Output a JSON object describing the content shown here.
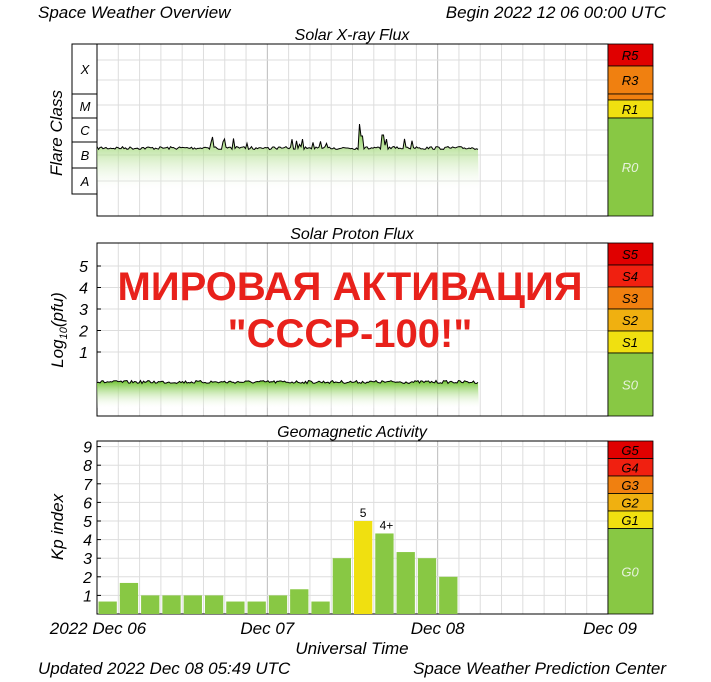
{
  "header": {
    "title": "Space Weather Overview",
    "begin": "Begin 2022 12 06 00:00 UTC"
  },
  "footer": {
    "updated": "Updated 2022 Dec 08 05:49 UTC",
    "source": "Space Weather Prediction Center"
  },
  "overlay": {
    "line1": "МИРОВАЯ АКТИВАЦИЯ",
    "line2": "\"СССР-100!\""
  },
  "chart_data": [
    {
      "type": "area",
      "title": "Solar X-ray Flux",
      "ylabel": "Flare Class",
      "yticks": [
        "X",
        "M",
        "C",
        "B",
        "A"
      ],
      "x": [
        "2022 Dec 06",
        "2022 Dec 08 05:49"
      ],
      "level_class": "B",
      "peak_class": "C",
      "scale": [
        {
          "label": "R5",
          "color": "#e00000"
        },
        {
          "label": "R3",
          "color": "#f08010"
        },
        {
          "label": "R1",
          "color": "#f0e010"
        },
        {
          "label": "R0",
          "color": "#88c844"
        }
      ],
      "line_color": "#000000",
      "fill_color": "#7ccf3c"
    },
    {
      "type": "area",
      "title": "Solar Proton Flux",
      "ylabel": "Log10(pfu)",
      "yticks": [
        "5",
        "4",
        "3",
        "2",
        "1"
      ],
      "x": [
        "2022 Dec 06",
        "2022 Dec 08 05:49"
      ],
      "scale": [
        {
          "label": "S5",
          "color": "#e00000"
        },
        {
          "label": "S4",
          "color": "#f02010"
        },
        {
          "label": "S3",
          "color": "#f08010"
        },
        {
          "label": "S2",
          "color": "#f0b010"
        },
        {
          "label": "S1",
          "color": "#f0e010"
        },
        {
          "label": "S0",
          "color": "#88c844"
        }
      ],
      "line_color": "#000000",
      "fill_color": "#7ccf3c"
    },
    {
      "type": "bar",
      "title": "Geomagnetic Activity",
      "ylabel": "Kp index",
      "xlabel": "Universal Time",
      "yticks": [
        "9",
        "8",
        "7",
        "6",
        "5",
        "4",
        "3",
        "2",
        "1"
      ],
      "ylim": [
        0,
        9
      ],
      "xtick_labels": [
        "2022 Dec 06",
        "Dec 07",
        "Dec 08",
        "Dec 09"
      ],
      "values": [
        0.67,
        1.67,
        1,
        1,
        1,
        1,
        0.67,
        0.67,
        1,
        1.33,
        0.67,
        3,
        5,
        4.33,
        3.33,
        3,
        2
      ],
      "bar_labels": {
        "12": "5",
        "13": "4+"
      },
      "bar_colors": {
        "default": "#88c844",
        "storm": "#f0e010"
      },
      "scale": [
        {
          "label": "G5",
          "color": "#e00000"
        },
        {
          "label": "G4",
          "color": "#f02010"
        },
        {
          "label": "G3",
          "color": "#f08010"
        },
        {
          "label": "G2",
          "color": "#f0b010"
        },
        {
          "label": "G1",
          "color": "#f0e010"
        },
        {
          "label": "G0",
          "color": "#88c844"
        }
      ]
    }
  ]
}
